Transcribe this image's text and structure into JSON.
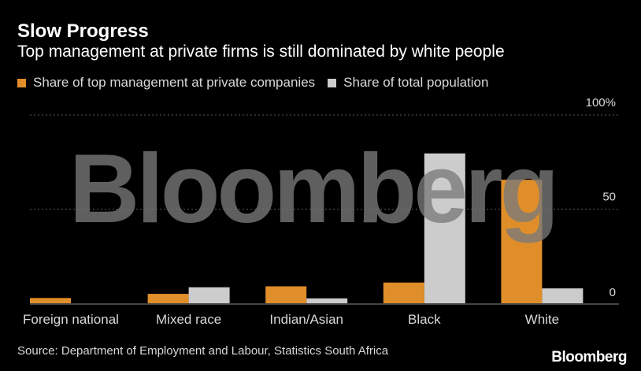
{
  "header": {
    "title": "Slow Progress",
    "subtitle": "Top management at private firms is still dominated by white people"
  },
  "legend": {
    "items": [
      {
        "label": "Share of top management at private companies",
        "color": "#e08e2a"
      },
      {
        "label": "Share of total population",
        "color": "#cccccc"
      }
    ]
  },
  "footer": {
    "source": "Source: Department of Employment and Labour, Statistics South Africa",
    "brand": "Bloomberg"
  },
  "watermark": "Bloomberg",
  "chart_data": {
    "type": "bar",
    "categories": [
      "Foreign national",
      "Mixed race",
      "Indian/Asian",
      "Black",
      "White"
    ],
    "series": [
      {
        "name": "Share of top management at private companies",
        "color": "#e08e2a",
        "values": [
          2.8,
          5,
          9,
          11,
          65.6
        ]
      },
      {
        "name": "Share of total population",
        "color": "#cccccc",
        "values": [
          0,
          8.5,
          2.6,
          79.6,
          7.9
        ]
      }
    ],
    "yticks": [
      {
        "value": 100,
        "label": "100%"
      },
      {
        "value": 50,
        "label": "50"
      },
      {
        "value": 0,
        "label": "0"
      }
    ],
    "ylim": [
      0,
      100
    ],
    "grid": true,
    "title": "Slow Progress",
    "xlabel": "",
    "ylabel": ""
  }
}
